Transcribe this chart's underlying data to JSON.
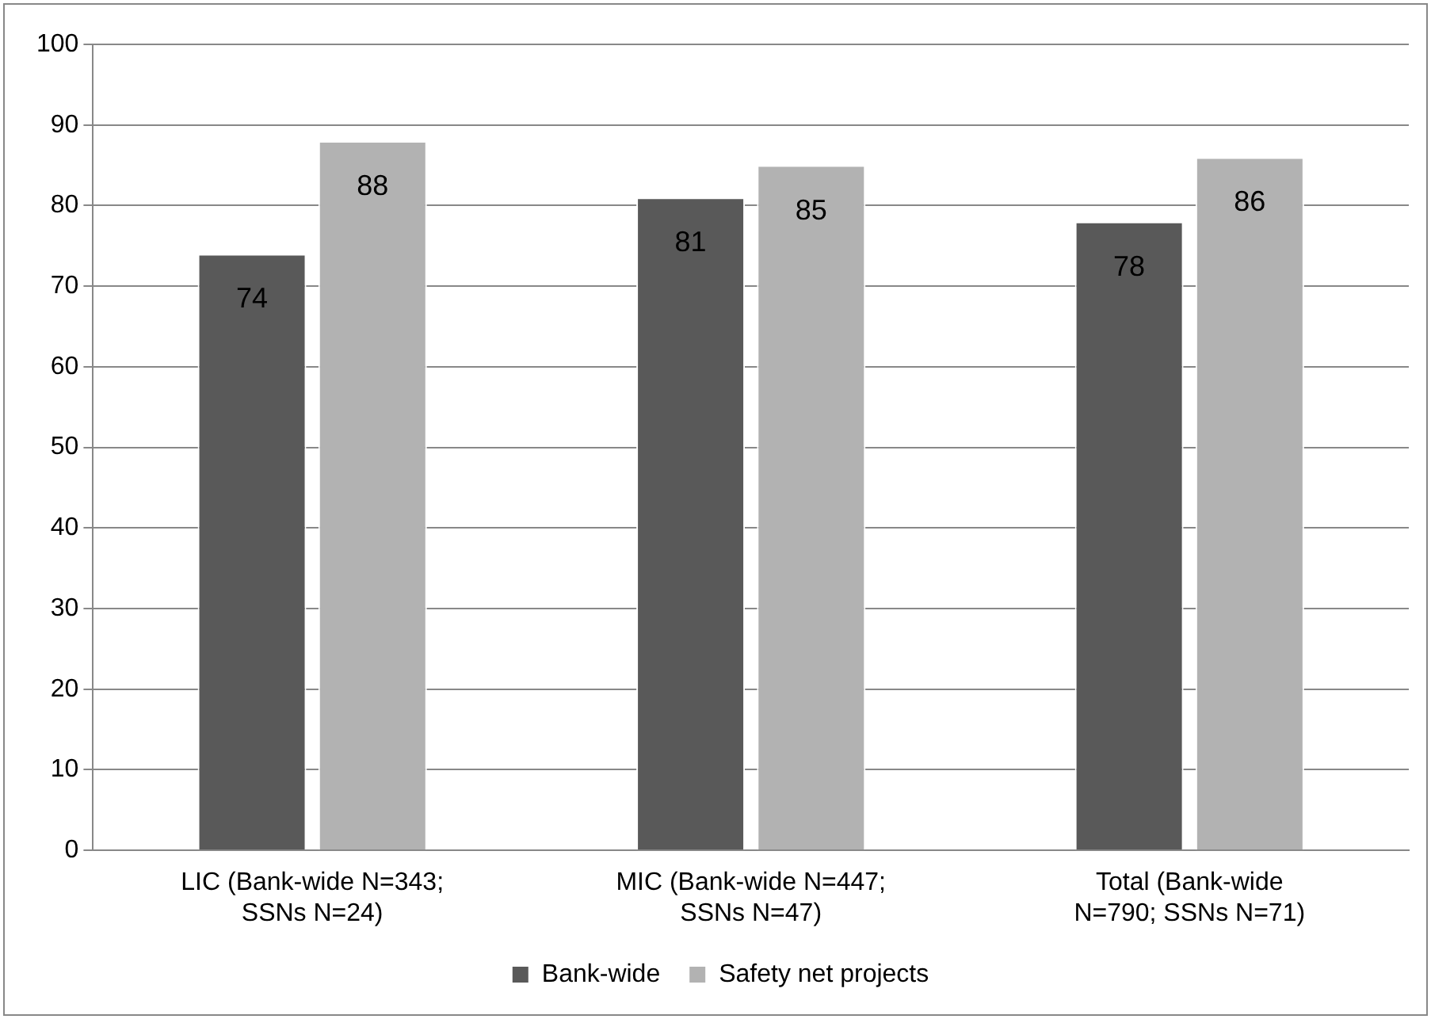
{
  "chart_data": {
    "type": "bar",
    "categories": [
      "LIC (Bank-wide N=343; SSNs N=24)",
      "MIC (Bank-wide N=447; SSNs N=47)",
      "Total (Bank-wide N=790; SSNs N=71)"
    ],
    "series": [
      {
        "name": "Bank-wide",
        "color": "#595959",
        "values": [
          74,
          81,
          78
        ]
      },
      {
        "name": "Safety net projects",
        "color": "#b2b2b2",
        "values": [
          88,
          85,
          86
        ]
      }
    ],
    "ylim": [
      0,
      100
    ],
    "yticks": [
      0,
      10,
      20,
      30,
      40,
      50,
      60,
      70,
      80,
      90,
      100
    ],
    "grid": "y",
    "legend": "bottom",
    "data_labels": true
  }
}
